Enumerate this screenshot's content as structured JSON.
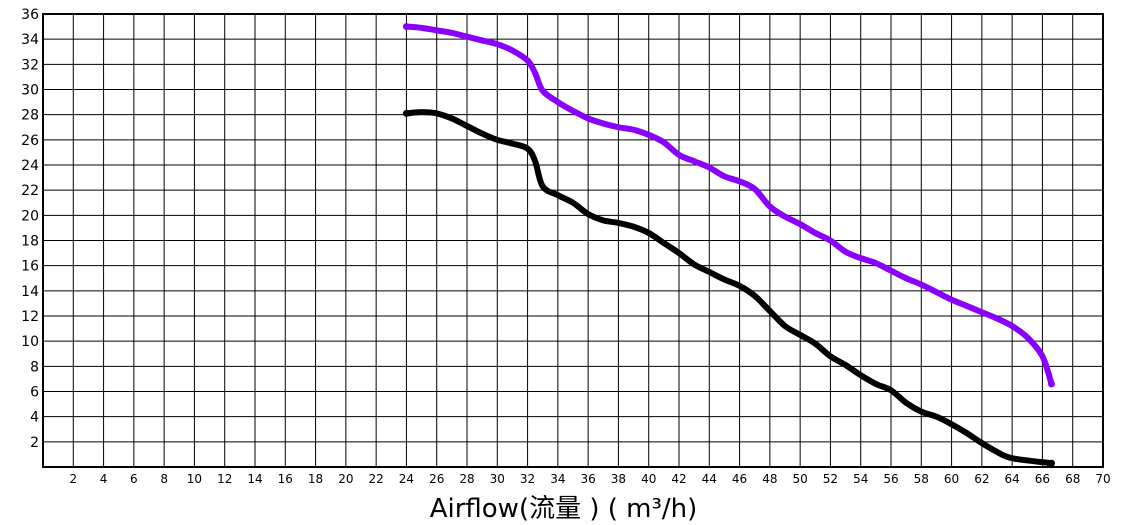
{
  "chart_data": {
    "type": "line",
    "xlabel": "Airflow(流量 ) ( m³/h)",
    "ylabel": "",
    "title": "",
    "xlim": [
      0,
      70
    ],
    "ylim": [
      0,
      36
    ],
    "grid": true,
    "x_ticks": [
      2,
      4,
      6,
      8,
      10,
      12,
      14,
      16,
      18,
      20,
      22,
      24,
      26,
      28,
      30,
      32,
      34,
      36,
      38,
      40,
      42,
      44,
      46,
      48,
      50,
      52,
      54,
      56,
      58,
      60,
      62,
      64,
      66,
      68,
      70
    ],
    "y_ticks": [
      2,
      4,
      6,
      8,
      10,
      12,
      14,
      16,
      18,
      20,
      22,
      24,
      26,
      28,
      30,
      32,
      34,
      36
    ],
    "series": [
      {
        "color": "#8a00ff",
        "points": [
          [
            24,
            35
          ],
          [
            25,
            34.9
          ],
          [
            26,
            34.7
          ],
          [
            27,
            34.5
          ],
          [
            28,
            34.2
          ],
          [
            29,
            33.9
          ],
          [
            30,
            33.6
          ],
          [
            31,
            33.1
          ],
          [
            32,
            32.3
          ],
          [
            32.5,
            31.3
          ],
          [
            33,
            29.9
          ],
          [
            34,
            29
          ],
          [
            35,
            28.3
          ],
          [
            36,
            27.7
          ],
          [
            37,
            27.3
          ],
          [
            38,
            27
          ],
          [
            39,
            26.8
          ],
          [
            40,
            26.4
          ],
          [
            41,
            25.8
          ],
          [
            42,
            24.8
          ],
          [
            43,
            24.3
          ],
          [
            44,
            23.8
          ],
          [
            45,
            23.1
          ],
          [
            46,
            22.7
          ],
          [
            47,
            22.1
          ],
          [
            48,
            20.7
          ],
          [
            49,
            19.9
          ],
          [
            50,
            19.3
          ],
          [
            51,
            18.6
          ],
          [
            52,
            18
          ],
          [
            53,
            17.1
          ],
          [
            54,
            16.6
          ],
          [
            55,
            16.2
          ],
          [
            56,
            15.6
          ],
          [
            57,
            15
          ],
          [
            58,
            14.5
          ],
          [
            59,
            13.9
          ],
          [
            60,
            13.3
          ],
          [
            61,
            12.8
          ],
          [
            62,
            12.3
          ],
          [
            63,
            11.8
          ],
          [
            64,
            11.2
          ],
          [
            65,
            10.3
          ],
          [
            66,
            8.8
          ],
          [
            66.6,
            6.6
          ]
        ]
      },
      {
        "color": "#000000",
        "points": [
          [
            24,
            28.1
          ],
          [
            25,
            28.2
          ],
          [
            26,
            28.1
          ],
          [
            27,
            27.7
          ],
          [
            28,
            27.1
          ],
          [
            29,
            26.5
          ],
          [
            30,
            26
          ],
          [
            31,
            25.7
          ],
          [
            32,
            25.3
          ],
          [
            32.5,
            24.3
          ],
          [
            33,
            22.3
          ],
          [
            34,
            21.6
          ],
          [
            35,
            21
          ],
          [
            36,
            20.1
          ],
          [
            37,
            19.6
          ],
          [
            38,
            19.4
          ],
          [
            39,
            19.1
          ],
          [
            40,
            18.6
          ],
          [
            41,
            17.8
          ],
          [
            42,
            17
          ],
          [
            43,
            16.1
          ],
          [
            44,
            15.5
          ],
          [
            45,
            14.9
          ],
          [
            46,
            14.4
          ],
          [
            47,
            13.6
          ],
          [
            48,
            12.4
          ],
          [
            49,
            11.2
          ],
          [
            50,
            10.5
          ],
          [
            51,
            9.8
          ],
          [
            52,
            8.8
          ],
          [
            53,
            8.1
          ],
          [
            54,
            7.3
          ],
          [
            55,
            6.6
          ],
          [
            56,
            6.1
          ],
          [
            57,
            5.1
          ],
          [
            58,
            4.4
          ],
          [
            59,
            4
          ],
          [
            60,
            3.4
          ],
          [
            61,
            2.7
          ],
          [
            62,
            1.9
          ],
          [
            63,
            1.2
          ],
          [
            64,
            0.7
          ],
          [
            66.6,
            0.3
          ]
        ]
      }
    ]
  }
}
